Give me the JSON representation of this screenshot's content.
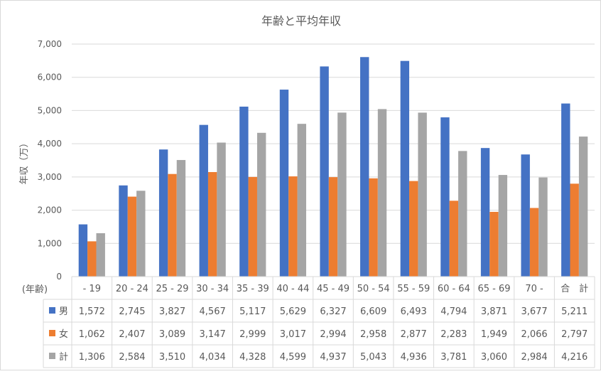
{
  "chart_data": {
    "type": "bar",
    "title": "年齢と平均年収",
    "ylabel": "年収（万）",
    "xlabel": "(年齢)",
    "ylim": [
      0,
      7000
    ],
    "yticks": [
      "0",
      "1,000",
      "2,000",
      "3,000",
      "4,000",
      "5,000",
      "6,000",
      "7,000"
    ],
    "ytick_values": [
      0,
      1000,
      2000,
      3000,
      4000,
      5000,
      6000,
      7000
    ],
    "grid": true,
    "categories": [
      "- 19",
      "20 - 24",
      "25 - 29",
      "30 - 34",
      "35 - 39",
      "40 - 44",
      "45 - 49",
      "50 - 54",
      "55 - 59",
      "60 - 64",
      "65 - 69",
      "70 -",
      "合　計"
    ],
    "series": [
      {
        "name": "男",
        "color": "#4472c4",
        "values": [
          1572,
          2745,
          3827,
          4567,
          5117,
          5629,
          6327,
          6609,
          6493,
          4794,
          3871,
          3677,
          5211
        ],
        "labels": [
          "1,572",
          "2,745",
          "3,827",
          "4,567",
          "5,117",
          "5,629",
          "6,327",
          "6,609",
          "6,493",
          "4,794",
          "3,871",
          "3,677",
          "5,211"
        ]
      },
      {
        "name": "女",
        "color": "#ed7d31",
        "values": [
          1062,
          2407,
          3089,
          3147,
          2999,
          3017,
          2994,
          2958,
          2877,
          2283,
          1949,
          2066,
          2797
        ],
        "labels": [
          "1,062",
          "2,407",
          "3,089",
          "3,147",
          "2,999",
          "3,017",
          "2,994",
          "2,958",
          "2,877",
          "2,283",
          "1,949",
          "2,066",
          "2,797"
        ]
      },
      {
        "name": "計",
        "color": "#a5a5a5",
        "values": [
          1306,
          2584,
          3510,
          4034,
          4328,
          4599,
          4937,
          5043,
          4936,
          3781,
          3060,
          2984,
          4216
        ],
        "labels": [
          "1,306",
          "2,584",
          "3,510",
          "4,034",
          "4,328",
          "4,599",
          "4,937",
          "5,043",
          "4,936",
          "3,781",
          "3,060",
          "2,984",
          "4,216"
        ]
      }
    ]
  }
}
